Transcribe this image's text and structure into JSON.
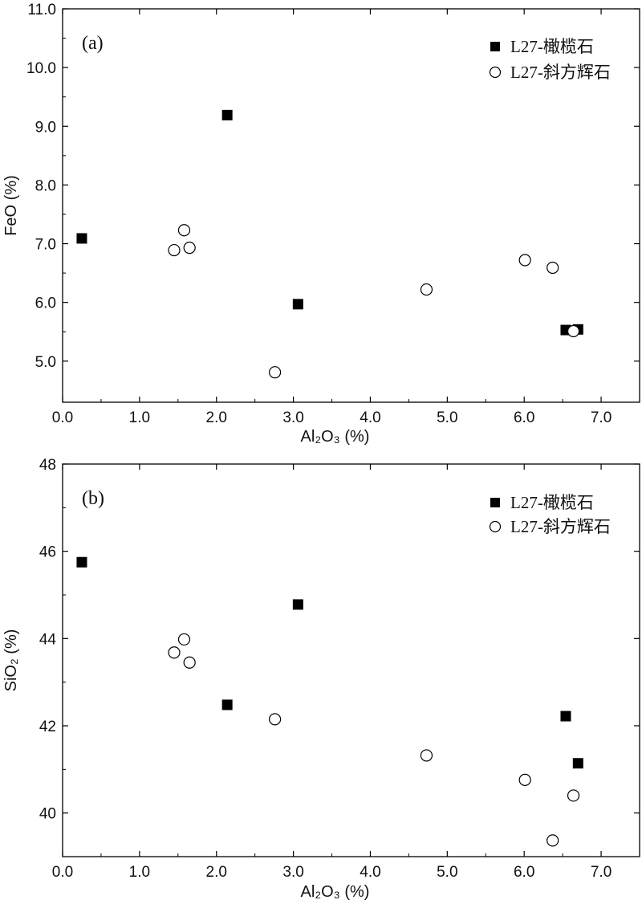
{
  "chart_data": [
    {
      "type": "scatter",
      "panel_label": "(a)",
      "xlabel": "Al₂O₃ (%)",
      "ylabel": "FeO (%)",
      "xlim": [
        0.0,
        7.5
      ],
      "ylim": [
        4.3,
        11.0
      ],
      "x_ticks": [
        "0.0",
        "1.0",
        "2.0",
        "3.0",
        "4.0",
        "5.0",
        "6.0",
        "7.0"
      ],
      "x_tick_values": [
        0,
        1,
        2,
        3,
        4,
        5,
        6,
        7
      ],
      "y_ticks": [
        "5.0",
        "6.0",
        "7.0",
        "8.0",
        "9.0",
        "10.0",
        "11.0"
      ],
      "y_tick_values": [
        5,
        6,
        7,
        8,
        9,
        10,
        11
      ],
      "legend_position": "top-right",
      "grid": false,
      "series": [
        {
          "name": "L27-橄榄石",
          "marker": "filled-square",
          "color": "#000000",
          "points": [
            {
              "x": 0.25,
              "y": 7.09
            },
            {
              "x": 2.14,
              "y": 9.19
            },
            {
              "x": 3.06,
              "y": 5.97
            },
            {
              "x": 6.54,
              "y": 5.53
            },
            {
              "x": 6.7,
              "y": 5.54
            }
          ]
        },
        {
          "name": "L27-斜方辉石",
          "marker": "open-circle",
          "color": "#000000",
          "points": [
            {
              "x": 1.45,
              "y": 6.89
            },
            {
              "x": 1.58,
              "y": 7.23
            },
            {
              "x": 1.65,
              "y": 6.93
            },
            {
              "x": 2.76,
              "y": 4.81
            },
            {
              "x": 4.73,
              "y": 6.22
            },
            {
              "x": 6.01,
              "y": 6.72
            },
            {
              "x": 6.37,
              "y": 6.59
            },
            {
              "x": 6.64,
              "y": 5.51
            }
          ]
        }
      ]
    },
    {
      "type": "scatter",
      "panel_label": "(b)",
      "xlabel": "Al₂O₃ (%)",
      "ylabel": "SiO₂ (%)",
      "xlim": [
        0.0,
        7.5
      ],
      "ylim": [
        39.0,
        48.0
      ],
      "x_ticks": [
        "0.0",
        "1.0",
        "2.0",
        "3.0",
        "4.0",
        "5.0",
        "6.0",
        "7.0"
      ],
      "x_tick_values": [
        0,
        1,
        2,
        3,
        4,
        5,
        6,
        7
      ],
      "y_ticks": [
        "40",
        "42",
        "44",
        "46",
        "48"
      ],
      "y_tick_values": [
        40,
        42,
        44,
        46,
        48
      ],
      "legend_position": "top-right",
      "grid": false,
      "series": [
        {
          "name": "L27-橄榄石",
          "marker": "filled-square",
          "color": "#000000",
          "points": [
            {
              "x": 0.25,
              "y": 45.75
            },
            {
              "x": 2.14,
              "y": 42.48
            },
            {
              "x": 3.06,
              "y": 44.78
            },
            {
              "x": 6.54,
              "y": 42.22
            },
            {
              "x": 6.7,
              "y": 41.14
            }
          ]
        },
        {
          "name": "L27-斜方辉石",
          "marker": "open-circle",
          "color": "#000000",
          "points": [
            {
              "x": 1.45,
              "y": 43.68
            },
            {
              "x": 1.58,
              "y": 43.98
            },
            {
              "x": 1.65,
              "y": 43.45
            },
            {
              "x": 2.76,
              "y": 42.15
            },
            {
              "x": 4.73,
              "y": 41.32
            },
            {
              "x": 6.01,
              "y": 40.76
            },
            {
              "x": 6.37,
              "y": 39.37
            },
            {
              "x": 6.64,
              "y": 40.4
            }
          ]
        }
      ]
    }
  ]
}
